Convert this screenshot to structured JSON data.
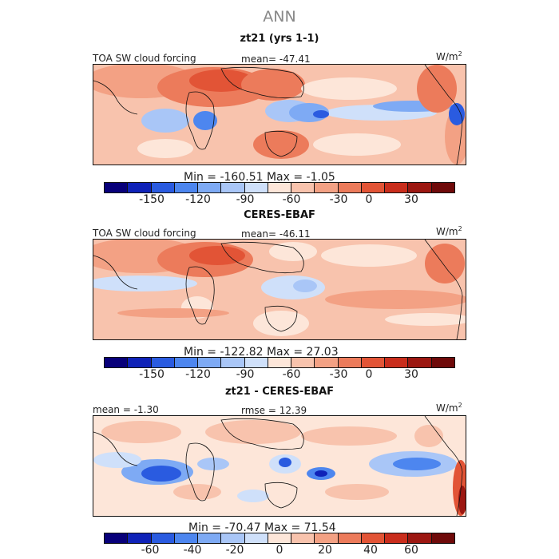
{
  "title": "ANN",
  "units": {
    "base": "W/m",
    "exp": "2"
  },
  "palette": [
    "#08007a",
    "#0f22b8",
    "#2a5be0",
    "#4d86ef",
    "#7eaaf4",
    "#a9c6f7",
    "#cfe0fa",
    "#fde6d9",
    "#f8c3ad",
    "#f3a184",
    "#ec7b5b",
    "#e25436",
    "#c92d1c",
    "#9c1711",
    "#6f0a0a"
  ],
  "panels": [
    {
      "title": "zt21 (yrs 1-1)",
      "left_label": "TOA SW cloud forcing",
      "center_label": "mean= -47.41",
      "stats": "Min = -160.51  Max =  -1.05",
      "ticks": [
        "-150",
        "-120",
        "-90",
        "-60",
        "-30",
        "0",
        "30"
      ]
    },
    {
      "title": "CERES-EBAF",
      "left_label": "TOA SW cloud forcing",
      "center_label": "mean= -46.11",
      "stats": "Min = -122.82  Max =  27.03",
      "ticks": [
        "-150",
        "-120",
        "-90",
        "-60",
        "-30",
        "0",
        "30"
      ]
    },
    {
      "title": "zt21 - CERES-EBAF",
      "left_label": "mean =  -1.30",
      "center_label": "rmse =  12.39",
      "stats": "Min = -70.47  Max =  71.54",
      "ticks": [
        "-60",
        "-40",
        "-20",
        "0",
        "20",
        "40",
        "60"
      ]
    }
  ]
}
